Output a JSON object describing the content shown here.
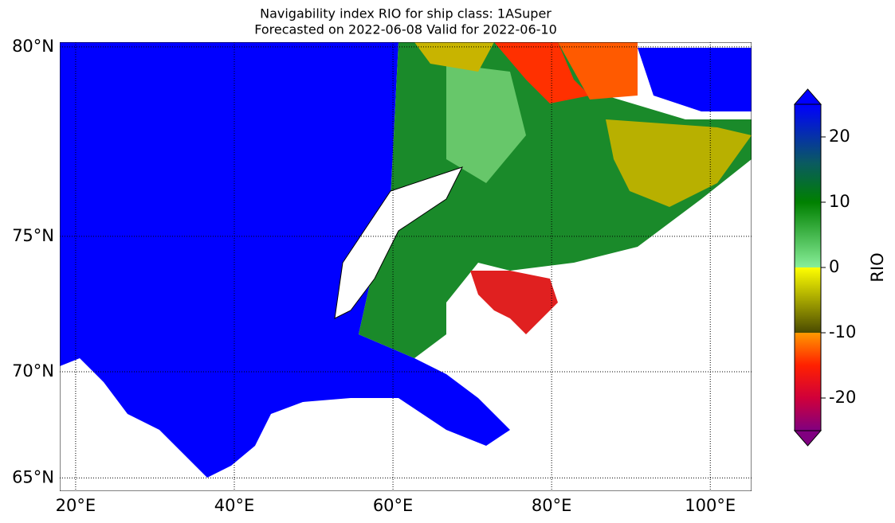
{
  "title": [
    "Navigability index RIO for ship class: 1ASuper",
    "Forecasted on 2022-06-08   Valid for 2022-06-10"
  ],
  "map": {
    "lon_range": [
      18,
      105.2
    ],
    "lat_range": [
      64.3,
      80.1
    ],
    "lon_ticks": [
      {
        "value": 20,
        "label": "20°E"
      },
      {
        "value": 40,
        "label": "40°E"
      },
      {
        "value": 60,
        "label": "60°E"
      },
      {
        "value": 80,
        "label": "80°E"
      },
      {
        "value": 100,
        "label": "100°E"
      }
    ],
    "lat_ticks": [
      {
        "value": 80,
        "label": "80°N"
      },
      {
        "value": 75,
        "label": "75°N"
      },
      {
        "value": 70,
        "label": "70°N"
      },
      {
        "value": 65,
        "label": "65°N"
      }
    ]
  },
  "colorbar": {
    "label": "RIO",
    "lim": [
      -25,
      25
    ],
    "ticks": [
      20,
      10,
      0,
      -10,
      -20
    ],
    "stops": [
      {
        "value": -25,
        "color": "#800080"
      },
      {
        "value": -20,
        "color": "#d0003a"
      },
      {
        "value": -15,
        "color": "#ff2000"
      },
      {
        "value": -10,
        "color": "#ff9900"
      },
      {
        "value": -10,
        "color": "#4a4a00"
      },
      {
        "value": 0,
        "color": "#ffff00"
      },
      {
        "value": 0,
        "color": "#88ee99"
      },
      {
        "value": 10,
        "color": "#008000"
      },
      {
        "value": 16,
        "color": "#0a5a60"
      },
      {
        "value": 25,
        "color": "#0000ff"
      }
    ]
  }
}
